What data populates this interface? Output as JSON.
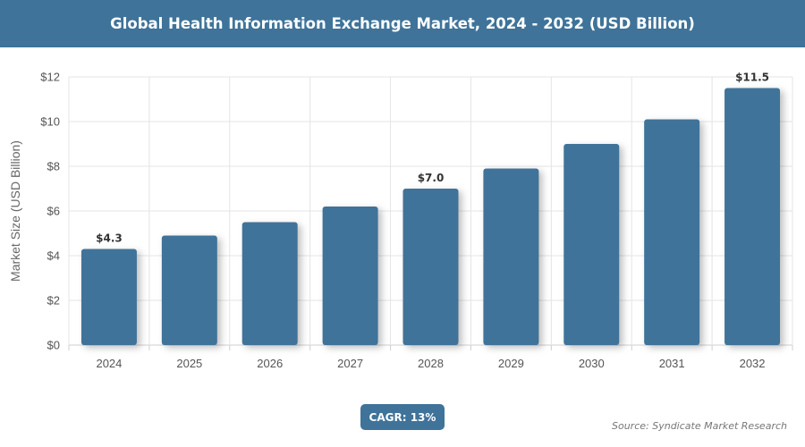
{
  "header": {
    "title": "Global Health Information Exchange Market, 2024 - 2032 (USD Billion)"
  },
  "colors": {
    "accent": "#3f7399",
    "bar": "#3f7399"
  },
  "footer": {
    "cagr": "CAGR: 13%",
    "source": "Source: Syndicate Market Research"
  },
  "chart_data": {
    "type": "bar",
    "title": "Global Health Information Exchange Market, 2024 - 2032 (USD Billion)",
    "ylabel": "Market Size (USD Billion)",
    "xlabel": "",
    "categories": [
      "2024",
      "2025",
      "2026",
      "2027",
      "2028",
      "2029",
      "2030",
      "2031",
      "2032"
    ],
    "values": [
      4.3,
      4.9,
      5.5,
      6.2,
      7.0,
      7.9,
      9.0,
      10.1,
      11.5
    ],
    "ylim": [
      0,
      12
    ],
    "yticks": [
      0,
      2,
      4,
      6,
      8,
      10,
      12
    ],
    "ytick_labels": [
      "$0",
      "$2",
      "$4",
      "$6",
      "$8",
      "$10",
      "$12"
    ],
    "data_labels": [
      {
        "index": 0,
        "text": "$4.3"
      },
      {
        "index": 4,
        "text": "$7.0"
      },
      {
        "index": 8,
        "text": "$11.5"
      }
    ],
    "grid": true,
    "legend": "none"
  }
}
